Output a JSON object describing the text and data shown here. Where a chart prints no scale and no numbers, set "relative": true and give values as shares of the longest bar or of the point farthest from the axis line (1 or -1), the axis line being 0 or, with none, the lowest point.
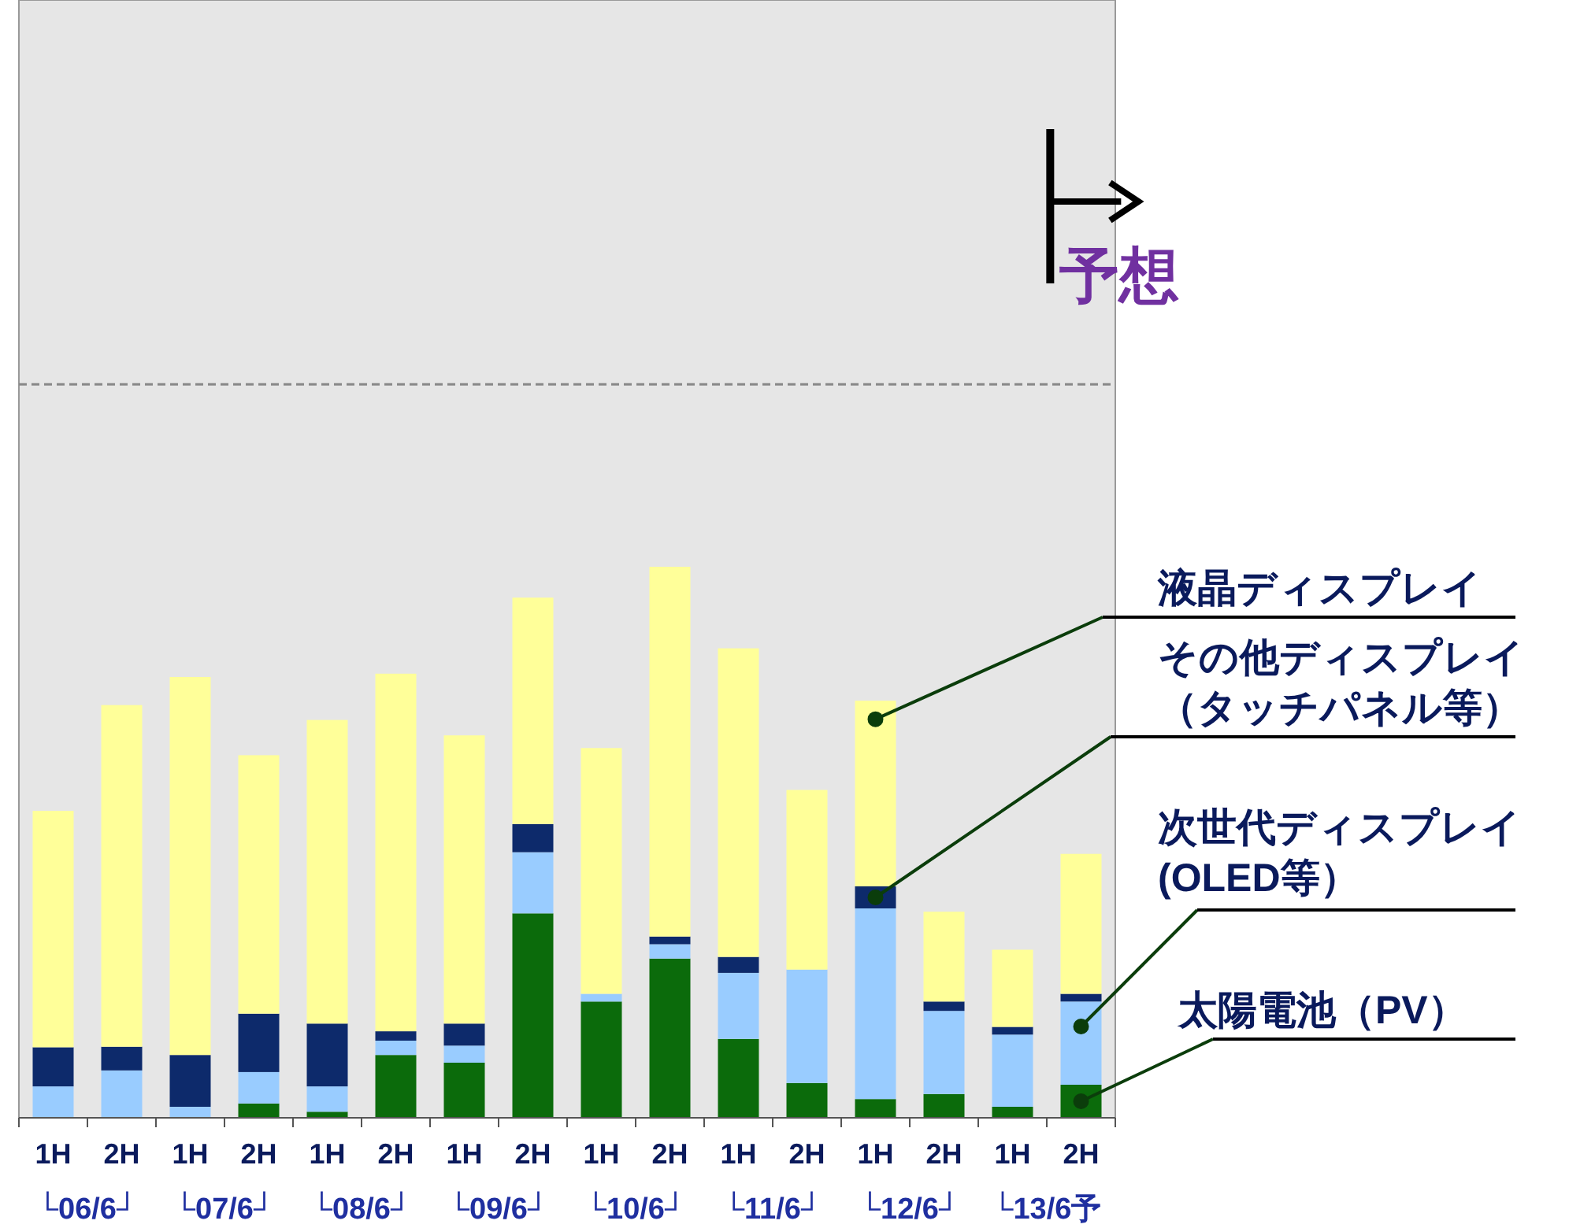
{
  "chart_data": {
    "type": "bar",
    "stacked": true,
    "relative": true,
    "categories": [
      "1H",
      "2H",
      "1H",
      "2H",
      "1H",
      "2H",
      "1H",
      "2H",
      "1H",
      "2H",
      "1H",
      "2H",
      "1H",
      "2H",
      "1H",
      "2H"
    ],
    "series": [
      {
        "name": "太陽電池（PV）",
        "color": "#0b6b0b",
        "values": [
          0,
          0,
          0,
          0.026,
          0.011,
          0.114,
          0.1,
          0.371,
          0.211,
          0.289,
          0.143,
          0.063,
          0.034,
          0.043,
          0.02,
          0.06
        ]
      },
      {
        "name": "次世代ディスプレイ(OLED等）",
        "color": "#99ccff",
        "values": [
          0.057,
          0.086,
          0.02,
          0.057,
          0.046,
          0.026,
          0.031,
          0.111,
          0.014,
          0.026,
          0.12,
          0.206,
          0.346,
          0.151,
          0.131,
          0.151
        ]
      },
      {
        "name": "その他ディスプレイ（タッチパネル等）",
        "color": "#0d2a6b",
        "values": [
          0.071,
          0.043,
          0.094,
          0.106,
          0.114,
          0.017,
          0.04,
          0.051,
          0,
          0.014,
          0.029,
          0,
          0.04,
          0.017,
          0.014,
          0.014
        ]
      },
      {
        "name": "液晶ディスプレイ",
        "color": "#ffff99",
        "values": [
          0.429,
          0.62,
          0.686,
          0.469,
          0.551,
          0.649,
          0.523,
          0.411,
          0.446,
          0.671,
          0.56,
          0.326,
          0.337,
          0.163,
          0.14,
          0.254
        ]
      }
    ],
    "ref_lines": [
      {
        "axis": "y",
        "value": 1.331,
        "color": "#888888",
        "line_style": "dashed"
      }
    ],
    "annotations": [
      "└06/6┘",
      "└07/6┘",
      "└08/6┘",
      "└09/6┘",
      "└10/6┘",
      "└11/6┘",
      "└12/6┘",
      "└13/6予",
      "予想"
    ]
  }
}
